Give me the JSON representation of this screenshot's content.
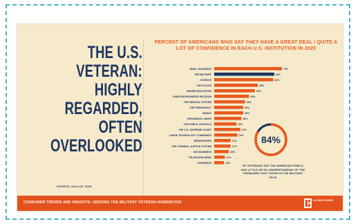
{
  "headline": [
    "THE U.S.",
    "VETERAN:",
    "HIGHLY",
    "REGARDED,",
    "OFTEN",
    "OVERLOOKED"
  ],
  "source": "SOURCE: GALLUP, 2025",
  "colors": {
    "bar": "#e85a1f",
    "highlight": "#1d3560",
    "footer": "#e3521e",
    "background": "#f6eacb",
    "frame": "#4cb1c9"
  },
  "chart_data": {
    "type": "bar",
    "orientation": "horizontal",
    "title": "PERCENT OF AMERICANS WHO SAY THEY HAVE A GREAT DEAL / QUITE A LOT OF CONFIDENCE IN EACH U.S. INSTITUTION IN 2025",
    "categories": [
      "SMALL BUSINESS",
      "THE MILITARY",
      "SCIENCE",
      "THE POLICE",
      "HIGHER EDUCATION",
      "CHURCH/ORGANIZED RELIGION",
      "THE MEDICAL SYSTEM",
      "THE PRESIDENCY",
      "BANKS",
      "ORGANIZED LABOR",
      "THE PUBLIC SCHOOLS",
      "THE U.S. SUPREME COURT",
      "LARGE TECHNOLOGY COMPANIES",
      "NEWSPAPERS",
      "THE CRIMINAL JUSTICE SYSTEM",
      "BIG BUSINESS",
      "TELEVISION NEWS",
      "CONGRESS"
    ],
    "values": [
      70,
      62,
      61,
      45,
      42,
      36,
      32,
      30,
      30,
      28,
      23,
      27,
      24,
      17,
      17,
      15,
      11,
      10
    ],
    "value_labels": [
      "70%",
      "62%",
      "61%",
      "45%",
      "42%",
      "36%",
      "32%",
      "30%",
      "30%",
      "28%",
      "23%",
      "27%",
      "24%",
      "17%",
      "17%",
      "15%",
      "11%",
      "10%"
    ],
    "highlight_index": 1,
    "xlim": [
      0,
      100
    ]
  },
  "donut": {
    "label": "84%",
    "value": 84,
    "text": "OF VETERANS SAY THE AMERICAN PUBLIC HAS LITTLE OR NO UNDERSTANDING OF THE PROBLEMS THAT THOSE IN THE MILITARY FACE"
  },
  "footer": {
    "text": "CONSUMER TRENDS AND INSIGHTS: SERVING THE MILITARY VETERAN HOMEBUYER",
    "logo": "OUTWARD HOMES"
  }
}
